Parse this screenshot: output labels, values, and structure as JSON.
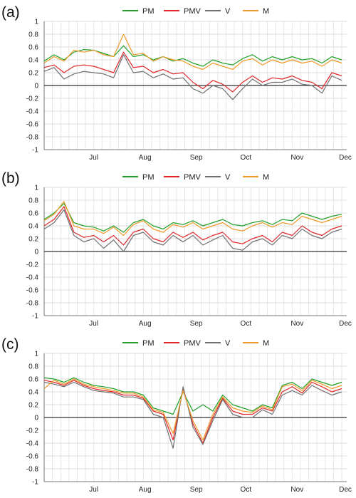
{
  "figure": {
    "panels": [
      {
        "label": "(a)"
      },
      {
        "label": "(b)"
      },
      {
        "label": "(c)"
      }
    ]
  },
  "chart_data": [
    {
      "type": "line",
      "panel": "(a)",
      "legend_position": "top-center",
      "grid": true,
      "ylim": [
        -1,
        1
      ],
      "yticks": [
        "1",
        "0.8",
        "0.6",
        "0.4",
        "0.2",
        "0",
        "-0.2",
        "-0.4",
        "-0.6",
        "-0.8",
        "-1"
      ],
      "xlim": [
        0,
        180
      ],
      "xticks": [
        {
          "label": "Jul",
          "x": 30
        },
        {
          "label": "Aug",
          "x": 61
        },
        {
          "label": "Sep",
          "x": 92
        },
        {
          "label": "Oct",
          "x": 122
        },
        {
          "label": "Nov",
          "x": 153
        },
        {
          "label": "Dec",
          "x": 183
        }
      ],
      "series_colors": {
        "PM": "#22a02a",
        "PMV": "#e0262a",
        "V": "#707070",
        "M": "#f09a2a"
      },
      "series": [
        {
          "name": "PM",
          "x": [
            0,
            6,
            12,
            18,
            24,
            30,
            36,
            42,
            48,
            54,
            60,
            66,
            72,
            78,
            84,
            90,
            96,
            102,
            108,
            114,
            120,
            126,
            132,
            138,
            144,
            150,
            156,
            162,
            168,
            174,
            180
          ],
          "y": [
            0.38,
            0.48,
            0.4,
            0.52,
            0.56,
            0.55,
            0.5,
            0.45,
            0.62,
            0.45,
            0.48,
            0.4,
            0.45,
            0.38,
            0.42,
            0.35,
            0.3,
            0.4,
            0.35,
            0.32,
            0.42,
            0.48,
            0.38,
            0.45,
            0.4,
            0.45,
            0.4,
            0.42,
            0.35,
            0.45,
            0.4
          ]
        },
        {
          "name": "PMV",
          "x": [
            0,
            6,
            12,
            18,
            24,
            30,
            36,
            42,
            48,
            54,
            60,
            66,
            72,
            78,
            84,
            90,
            96,
            102,
            108,
            114,
            120,
            126,
            132,
            138,
            144,
            150,
            156,
            162,
            168,
            174,
            180
          ],
          "y": [
            0.28,
            0.32,
            0.2,
            0.3,
            0.32,
            0.3,
            0.25,
            0.2,
            0.52,
            0.28,
            0.3,
            0.2,
            0.25,
            0.18,
            0.2,
            0.05,
            -0.05,
            0.08,
            0.02,
            -0.1,
            0.05,
            0.15,
            0.05,
            0.12,
            0.1,
            0.15,
            0.08,
            0.05,
            -0.05,
            0.2,
            0.15
          ]
        },
        {
          "name": "V",
          "x": [
            0,
            6,
            12,
            18,
            24,
            30,
            36,
            42,
            48,
            54,
            60,
            66,
            72,
            78,
            84,
            90,
            96,
            102,
            108,
            114,
            120,
            126,
            132,
            138,
            144,
            150,
            156,
            162,
            168,
            174,
            180
          ],
          "y": [
            0.22,
            0.28,
            0.1,
            0.18,
            0.22,
            0.2,
            0.18,
            0.12,
            0.48,
            0.2,
            0.22,
            0.12,
            0.18,
            0.1,
            0.12,
            -0.05,
            -0.12,
            0.0,
            -0.05,
            -0.22,
            -0.05,
            0.1,
            0.0,
            0.05,
            0.05,
            0.1,
            0.02,
            0.0,
            -0.12,
            0.15,
            0.08
          ]
        },
        {
          "name": "M",
          "x": [
            0,
            6,
            12,
            18,
            24,
            30,
            36,
            42,
            48,
            54,
            60,
            66,
            72,
            78,
            84,
            90,
            96,
            102,
            108,
            114,
            120,
            126,
            132,
            138,
            144,
            150,
            156,
            162,
            168,
            174,
            180
          ],
          "y": [
            0.35,
            0.45,
            0.38,
            0.55,
            0.52,
            0.55,
            0.48,
            0.45,
            0.8,
            0.48,
            0.5,
            0.38,
            0.45,
            0.4,
            0.38,
            0.3,
            0.25,
            0.35,
            0.3,
            0.25,
            0.38,
            0.42,
            0.32,
            0.4,
            0.35,
            0.4,
            0.35,
            0.38,
            0.3,
            0.4,
            0.35
          ]
        }
      ]
    },
    {
      "type": "line",
      "panel": "(b)",
      "legend_position": "top-center",
      "grid": true,
      "ylim": [
        -1,
        1
      ],
      "yticks": [
        "1",
        "0.8",
        "0.6",
        "0.4",
        "0.2",
        "0",
        "-0.2",
        "-0.4",
        "-0.6",
        "-0.8",
        "-1"
      ],
      "xlim": [
        0,
        180
      ],
      "xticks": [
        {
          "label": "Jul",
          "x": 30
        },
        {
          "label": "Aug",
          "x": 61
        },
        {
          "label": "Sep",
          "x": 92
        },
        {
          "label": "Oct",
          "x": 122
        },
        {
          "label": "Nov",
          "x": 153
        },
        {
          "label": "Dec",
          "x": 183
        }
      ],
      "series_colors": {
        "PM": "#22a02a",
        "PMV": "#e0262a",
        "V": "#707070",
        "M": "#f09a2a"
      },
      "series": [
        {
          "name": "PM",
          "x": [
            0,
            6,
            12,
            18,
            24,
            30,
            36,
            42,
            48,
            54,
            60,
            66,
            72,
            78,
            84,
            90,
            96,
            102,
            108,
            114,
            120,
            126,
            132,
            138,
            144,
            150,
            156,
            162,
            168,
            174,
            180
          ],
          "y": [
            0.5,
            0.6,
            0.75,
            0.45,
            0.4,
            0.38,
            0.32,
            0.4,
            0.3,
            0.45,
            0.5,
            0.4,
            0.35,
            0.45,
            0.42,
            0.48,
            0.4,
            0.45,
            0.5,
            0.42,
            0.4,
            0.45,
            0.48,
            0.42,
            0.5,
            0.48,
            0.6,
            0.55,
            0.5,
            0.55,
            0.58
          ]
        },
        {
          "name": "PMV",
          "x": [
            0,
            6,
            12,
            18,
            24,
            30,
            36,
            42,
            48,
            54,
            60,
            66,
            72,
            78,
            84,
            90,
            96,
            102,
            108,
            114,
            120,
            126,
            132,
            138,
            144,
            150,
            156,
            162,
            168,
            174,
            180
          ],
          "y": [
            0.4,
            0.5,
            0.7,
            0.3,
            0.22,
            0.25,
            0.15,
            0.25,
            0.1,
            0.3,
            0.35,
            0.2,
            0.15,
            0.3,
            0.22,
            0.3,
            0.18,
            0.25,
            0.3,
            0.15,
            0.12,
            0.2,
            0.25,
            0.15,
            0.3,
            0.25,
            0.4,
            0.3,
            0.25,
            0.35,
            0.4
          ]
        },
        {
          "name": "V",
          "x": [
            0,
            6,
            12,
            18,
            24,
            30,
            36,
            42,
            48,
            54,
            60,
            66,
            72,
            78,
            84,
            90,
            96,
            102,
            108,
            114,
            120,
            126,
            132,
            138,
            144,
            150,
            156,
            162,
            168,
            174,
            180
          ],
          "y": [
            0.35,
            0.45,
            0.65,
            0.25,
            0.15,
            0.2,
            0.05,
            0.18,
            0.0,
            0.25,
            0.3,
            0.15,
            0.1,
            0.25,
            0.15,
            0.25,
            0.1,
            0.18,
            0.25,
            0.05,
            0.02,
            0.15,
            0.2,
            0.1,
            0.25,
            0.2,
            0.35,
            0.25,
            0.2,
            0.3,
            0.35
          ]
        },
        {
          "name": "M",
          "x": [
            0,
            6,
            12,
            18,
            24,
            30,
            36,
            42,
            48,
            54,
            60,
            66,
            72,
            78,
            84,
            90,
            96,
            102,
            108,
            114,
            120,
            126,
            132,
            138,
            144,
            150,
            156,
            162,
            168,
            174,
            180
          ],
          "y": [
            0.48,
            0.58,
            0.78,
            0.4,
            0.35,
            0.35,
            0.28,
            0.38,
            0.25,
            0.42,
            0.48,
            0.35,
            0.3,
            0.42,
            0.38,
            0.45,
            0.35,
            0.4,
            0.45,
            0.35,
            0.32,
            0.4,
            0.45,
            0.38,
            0.45,
            0.42,
            0.55,
            0.5,
            0.45,
            0.5,
            0.55
          ]
        }
      ]
    },
    {
      "type": "line",
      "panel": "(c)",
      "legend_position": "top-center",
      "grid": true,
      "ylim": [
        -1,
        1
      ],
      "yticks": [
        "1",
        "0.8",
        "0.6",
        "0.4",
        "0.2",
        "0",
        "-0.2",
        "-0.4",
        "-0.6",
        "-0.8",
        "-1"
      ],
      "xlim": [
        0,
        180
      ],
      "xticks": [
        {
          "label": "Jul",
          "x": 30
        },
        {
          "label": "Aug",
          "x": 61
        },
        {
          "label": "Sep",
          "x": 92
        },
        {
          "label": "Oct",
          "x": 122
        },
        {
          "label": "Nov",
          "x": 153
        },
        {
          "label": "Dec",
          "x": 183
        }
      ],
      "series_colors": {
        "PM": "#22a02a",
        "PMV": "#e0262a",
        "V": "#707070",
        "M": "#f09a2a"
      },
      "series": [
        {
          "name": "PM",
          "x": [
            0,
            6,
            12,
            18,
            24,
            30,
            36,
            42,
            48,
            54,
            60,
            66,
            72,
            78,
            84,
            90,
            96,
            102,
            108,
            114,
            120,
            126,
            132,
            138,
            144,
            150,
            156,
            162,
            168,
            174,
            180
          ],
          "y": [
            0.62,
            0.6,
            0.55,
            0.62,
            0.55,
            0.5,
            0.48,
            0.45,
            0.4,
            0.4,
            0.35,
            0.15,
            0.1,
            0.05,
            0.4,
            0.1,
            0.2,
            0.1,
            0.35,
            0.2,
            0.15,
            0.1,
            0.2,
            0.15,
            0.5,
            0.55,
            0.45,
            0.6,
            0.55,
            0.5,
            0.55
          ]
        },
        {
          "name": "PMV",
          "x": [
            0,
            6,
            12,
            18,
            24,
            30,
            36,
            42,
            48,
            54,
            60,
            66,
            72,
            78,
            84,
            90,
            96,
            102,
            108,
            114,
            120,
            126,
            132,
            138,
            144,
            150,
            156,
            162,
            168,
            174,
            180
          ],
          "y": [
            0.58,
            0.55,
            0.5,
            0.58,
            0.5,
            0.45,
            0.42,
            0.4,
            0.35,
            0.35,
            0.3,
            0.1,
            0.05,
            -0.35,
            0.45,
            -0.1,
            -0.4,
            0.0,
            0.3,
            0.1,
            0.05,
            0.05,
            0.15,
            0.1,
            0.4,
            0.48,
            0.38,
            0.55,
            0.48,
            0.4,
            0.45
          ]
        },
        {
          "name": "V",
          "x": [
            0,
            6,
            12,
            18,
            24,
            30,
            36,
            42,
            48,
            54,
            60,
            66,
            72,
            78,
            84,
            90,
            96,
            102,
            108,
            114,
            120,
            126,
            132,
            138,
            144,
            150,
            156,
            162,
            168,
            174,
            180
          ],
          "y": [
            0.55,
            0.52,
            0.48,
            0.55,
            0.48,
            0.42,
            0.4,
            0.38,
            0.32,
            0.32,
            0.28,
            0.05,
            0.0,
            -0.48,
            0.48,
            -0.15,
            -0.42,
            -0.05,
            0.28,
            0.05,
            0.0,
            0.0,
            0.12,
            0.05,
            0.35,
            0.42,
            0.35,
            0.5,
            0.42,
            0.35,
            0.4
          ]
        },
        {
          "name": "M",
          "x": [
            0,
            6,
            12,
            18,
            24,
            30,
            36,
            42,
            48,
            54,
            60,
            66,
            72,
            78,
            84,
            90,
            96,
            102,
            108,
            114,
            120,
            126,
            132,
            138,
            144,
            150,
            156,
            162,
            168,
            174,
            180
          ],
          "y": [
            0.45,
            0.58,
            0.52,
            0.6,
            0.52,
            0.48,
            0.45,
            0.42,
            0.38,
            0.38,
            0.32,
            0.12,
            0.08,
            -0.25,
            0.42,
            -0.05,
            -0.35,
            0.05,
            0.32,
            0.15,
            0.1,
            0.08,
            0.18,
            0.12,
            0.48,
            0.52,
            0.42,
            0.58,
            0.52,
            0.45,
            0.5
          ]
        }
      ]
    }
  ]
}
